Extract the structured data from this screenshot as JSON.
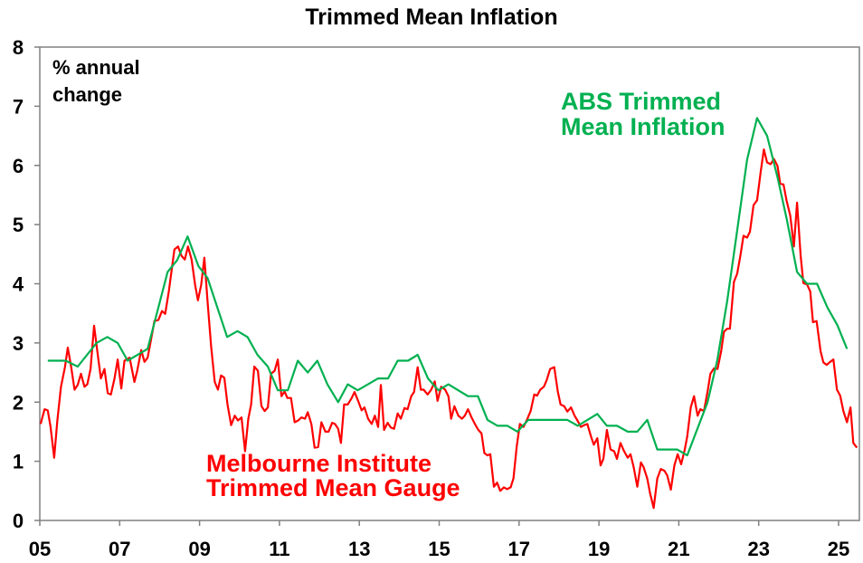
{
  "chart_data": {
    "type": "line",
    "title": "Trimmed Mean Inflation",
    "ylabel": "% annual change",
    "ylabel_lines": [
      "% annual",
      "change"
    ],
    "xlabel": "",
    "xlim": [
      2005,
      2025.52
    ],
    "ylim": [
      0,
      8
    ],
    "grid": false,
    "y_ticks": [
      0,
      1,
      2,
      3,
      4,
      5,
      6,
      7,
      8
    ],
    "x_ticks": [
      2005,
      2007,
      2009,
      2011,
      2013,
      2015,
      2017,
      2019,
      2021,
      2023,
      2025
    ],
    "x_tick_labels": [
      "05",
      "07",
      "09",
      "11",
      "13",
      "15",
      "17",
      "19",
      "21",
      "23",
      "25"
    ],
    "series": [
      {
        "name": "ABS Trimmed Mean Inflation",
        "label_lines": [
          "ABS Trimmed",
          "Mean Inflation"
        ],
        "color": "#00b050",
        "x": [
          2005.2,
          2005.65,
          2005.95,
          2006.42,
          2006.69,
          2006.95,
          2007.2,
          2007.7,
          2008.2,
          2008.44,
          2008.7,
          2008.97,
          2009.2,
          2009.69,
          2009.95,
          2010.2,
          2010.45,
          2010.71,
          2010.96,
          2011.21,
          2011.46,
          2011.71,
          2011.95,
          2012.2,
          2012.47,
          2012.71,
          2012.96,
          2013.47,
          2013.72,
          2013.96,
          2014.22,
          2014.46,
          2014.72,
          2014.98,
          2015.23,
          2015.72,
          2015.97,
          2016.21,
          2016.46,
          2016.71,
          2016.96,
          2017.23,
          2018.21,
          2018.47,
          2018.96,
          2019.2,
          2019.45,
          2019.72,
          2019.96,
          2020.21,
          2020.46,
          2020.96,
          2021.21,
          2021.72,
          2021.96,
          2022.21,
          2022.46,
          2022.71,
          2022.96,
          2023.21,
          2023.47,
          2023.7,
          2023.96,
          2024.21,
          2024.46,
          2024.72,
          2024.97,
          2025.21
        ],
        "y": [
          2.7,
          2.7,
          2.6,
          3.0,
          3.1,
          3.0,
          2.7,
          2.9,
          4.2,
          4.4,
          4.8,
          4.3,
          4.1,
          3.1,
          3.2,
          3.1,
          2.8,
          2.6,
          2.2,
          2.2,
          2.7,
          2.5,
          2.7,
          2.3,
          2.0,
          2.3,
          2.2,
          2.4,
          2.4,
          2.7,
          2.7,
          2.8,
          2.4,
          2.2,
          2.3,
          2.1,
          2.1,
          1.7,
          1.6,
          1.6,
          1.5,
          1.7,
          1.7,
          1.6,
          1.8,
          1.6,
          1.6,
          1.5,
          1.5,
          1.7,
          1.2,
          1.2,
          1.1,
          2.0,
          2.7,
          3.7,
          4.9,
          6.1,
          6.8,
          6.5,
          5.8,
          5.1,
          4.2,
          4.0,
          4.0,
          3.6,
          3.3,
          2.9
        ]
      },
      {
        "name": "Melbourne Institute Trimmed Mean Gauge",
        "label_lines": [
          "Melbourne Institute",
          "Trimmed Mean Gauge"
        ],
        "color": "#ff0000",
        "x": [
          2005.02,
          2005.12,
          2005.2,
          2005.27,
          2005.36,
          2005.44,
          2005.53,
          2005.63,
          2005.7,
          2005.78,
          2005.87,
          2005.95,
          2006.03,
          2006.12,
          2006.19,
          2006.27,
          2006.36,
          2006.46,
          2006.53,
          2006.62,
          2006.7,
          2006.78,
          2006.87,
          2006.95,
          2007.04,
          2007.12,
          2007.25,
          2007.37,
          2007.44,
          2007.54,
          2007.62,
          2007.7,
          2007.8,
          2007.87,
          2007.97,
          2008.06,
          2008.14,
          2008.23,
          2008.37,
          2008.46,
          2008.55,
          2008.63,
          2008.71,
          2008.8,
          2008.89,
          2008.96,
          2009.04,
          2009.12,
          2009.2,
          2009.29,
          2009.38,
          2009.46,
          2009.54,
          2009.62,
          2009.7,
          2009.79,
          2009.88,
          2009.96,
          2010.05,
          2010.14,
          2010.22,
          2010.29,
          2010.37,
          2010.46,
          2010.55,
          2010.63,
          2010.71,
          2010.79,
          2010.88,
          2010.96,
          2011.05,
          2011.13,
          2011.2,
          2011.29,
          2011.38,
          2011.47,
          2011.55,
          2011.64,
          2011.71,
          2011.8,
          2011.88,
          2011.97,
          2012.05,
          2012.15,
          2012.23,
          2012.32,
          2012.39,
          2012.47,
          2012.54,
          2012.62,
          2012.71,
          2012.81,
          2012.88,
          2012.97,
          2013.06,
          2013.13,
          2013.22,
          2013.31,
          2013.39,
          2013.47,
          2013.54,
          2013.62,
          2013.71,
          2013.79,
          2013.87,
          2013.96,
          2014.04,
          2014.13,
          2014.21,
          2014.3,
          2014.37,
          2014.46,
          2014.54,
          2014.61,
          2014.71,
          2014.8,
          2014.89,
          2014.96,
          2015.05,
          2015.15,
          2015.23,
          2015.3,
          2015.38,
          2015.48,
          2015.57,
          2015.64,
          2015.72,
          2015.81,
          2015.91,
          2015.98,
          2016.06,
          2016.13,
          2016.21,
          2016.28,
          2016.37,
          2016.45,
          2016.53,
          2016.62,
          2016.7,
          2016.79,
          2016.86,
          2016.94,
          2017.02,
          2017.11,
          2017.19,
          2017.29,
          2017.38,
          2017.45,
          2017.53,
          2017.62,
          2017.69,
          2017.78,
          2017.88,
          2017.97,
          2018.04,
          2018.13,
          2018.21,
          2018.3,
          2018.39,
          2018.46,
          2018.55,
          2018.63,
          2018.71,
          2018.8,
          2018.87,
          2018.96,
          2019.04,
          2019.11,
          2019.2,
          2019.29,
          2019.38,
          2019.45,
          2019.54,
          2019.63,
          2019.72,
          2019.79,
          2019.87,
          2019.96,
          2020.05,
          2020.12,
          2020.21,
          2020.28,
          2020.37,
          2020.46,
          2020.55,
          2020.64,
          2020.71,
          2020.8,
          2020.89,
          2020.97,
          2021.06,
          2021.15,
          2021.21,
          2021.3,
          2021.38,
          2021.47,
          2021.54,
          2021.63,
          2021.72,
          2021.79,
          2021.88,
          2021.97,
          2022.06,
          2022.13,
          2022.21,
          2022.28,
          2022.38,
          2022.46,
          2022.54,
          2022.62,
          2022.71,
          2022.78,
          2022.87,
          2022.96,
          2023.05,
          2023.13,
          2023.21,
          2023.3,
          2023.38,
          2023.47,
          2023.54,
          2023.62,
          2023.7,
          2023.79,
          2023.88,
          2023.96,
          2024.05,
          2024.12,
          2024.21,
          2024.29,
          2024.36,
          2024.45,
          2024.55,
          2024.62,
          2024.7,
          2024.79,
          2024.87,
          2024.96,
          2025.04,
          2025.12,
          2025.21,
          2025.3,
          2025.37,
          2025.46
        ],
        "y": [
          1.63,
          1.88,
          1.86,
          1.58,
          1.06,
          1.69,
          2.26,
          2.59,
          2.92,
          2.62,
          2.21,
          2.29,
          2.48,
          2.26,
          2.3,
          2.56,
          3.29,
          2.75,
          2.4,
          2.56,
          2.15,
          2.13,
          2.4,
          2.72,
          2.23,
          2.7,
          2.75,
          2.34,
          2.53,
          2.88,
          2.68,
          2.75,
          3.11,
          3.37,
          3.39,
          3.54,
          3.49,
          3.87,
          4.58,
          4.63,
          4.47,
          4.41,
          4.63,
          4.41,
          3.98,
          3.72,
          3.98,
          4.44,
          3.71,
          2.94,
          2.34,
          2.21,
          2.45,
          2.41,
          1.96,
          1.61,
          1.77,
          1.69,
          1.74,
          1.17,
          1.72,
          1.96,
          2.6,
          2.53,
          1.93,
          1.85,
          1.91,
          2.48,
          2.53,
          2.72,
          2.1,
          2.18,
          2.07,
          2.07,
          1.66,
          1.69,
          1.74,
          1.72,
          1.83,
          1.63,
          1.23,
          1.24,
          1.66,
          1.5,
          1.5,
          1.65,
          1.63,
          1.55,
          1.31,
          1.96,
          1.96,
          2.07,
          2.17,
          2.02,
          1.86,
          1.91,
          1.72,
          1.63,
          1.77,
          1.58,
          2.29,
          1.53,
          1.65,
          1.57,
          1.55,
          1.81,
          1.72,
          1.9,
          1.88,
          2.1,
          2.17,
          2.59,
          2.21,
          2.21,
          2.13,
          2.21,
          2.35,
          2.02,
          2.26,
          2.21,
          2.1,
          1.72,
          1.93,
          1.77,
          1.72,
          1.77,
          1.88,
          1.74,
          1.61,
          1.53,
          1.47,
          1.14,
          1.1,
          1.12,
          0.57,
          0.64,
          0.5,
          0.56,
          0.53,
          0.56,
          0.71,
          1.25,
          1.63,
          1.58,
          1.69,
          1.85,
          2.13,
          2.11,
          2.21,
          2.26,
          2.37,
          2.56,
          2.59,
          2.18,
          1.96,
          1.93,
          1.84,
          1.91,
          1.77,
          1.69,
          1.58,
          1.61,
          1.63,
          1.42,
          1.28,
          1.39,
          0.93,
          1.04,
          1.53,
          1.2,
          1.17,
          1.04,
          1.31,
          1.17,
          1.06,
          1.12,
          0.9,
          0.57,
          0.98,
          0.9,
          0.71,
          0.46,
          0.21,
          0.71,
          0.87,
          0.84,
          0.76,
          0.52,
          0.93,
          1.12,
          0.95,
          1.2,
          1.42,
          1.91,
          2.1,
          1.77,
          1.88,
          1.85,
          2.18,
          2.48,
          2.57,
          2.56,
          2.86,
          3.19,
          3.24,
          3.24,
          4.03,
          4.17,
          4.47,
          4.81,
          4.78,
          4.88,
          5.33,
          5.41,
          5.89,
          6.27,
          6.05,
          6.02,
          6.11,
          5.99,
          5.69,
          5.68,
          5.4,
          5.15,
          4.63,
          5.37,
          4.47,
          4.01,
          3.99,
          3.87,
          3.35,
          3.37,
          2.86,
          2.67,
          2.63,
          2.68,
          2.72,
          2.21,
          2.11,
          1.85,
          1.66,
          1.91,
          1.31,
          1.23
        ]
      }
    ]
  }
}
